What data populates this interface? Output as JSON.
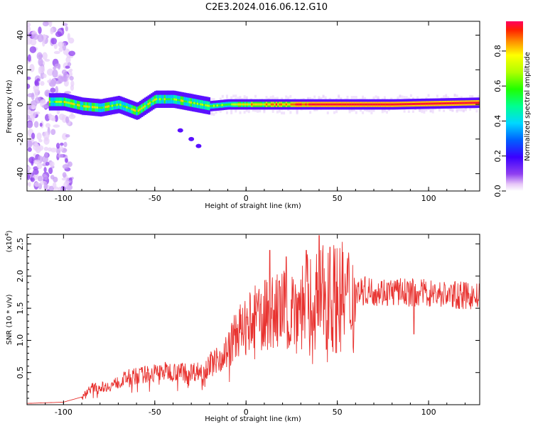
{
  "title": "C2E3.2024.016.06.12.G10",
  "chart_data": [
    {
      "type": "heatmap",
      "xlabel": "Height of straight line (km)",
      "ylabel": "Frequency (Hz)",
      "xlim": [
        -120,
        128
      ],
      "ylim": [
        -50,
        48
      ],
      "x_ticks": [
        -100,
        -50,
        0,
        50,
        100
      ],
      "x_tick_labels": [
        "-100",
        "-50",
        "0",
        "50",
        "100"
      ],
      "y_ticks": [
        -40,
        -20,
        0,
        20,
        40
      ],
      "y_tick_labels": [
        "-40",
        "-20",
        "0",
        "20",
        "40"
      ],
      "colorbar": {
        "label": "Normalized spectral amplitude",
        "range": [
          0,
          0.97
        ],
        "ticks": [
          0.0,
          0.2,
          0.4,
          0.6,
          0.8
        ],
        "tick_labels": [
          "0.0",
          "0.2",
          "0.4",
          "0.6",
          "0.8"
        ]
      },
      "ridge": [
        {
          "x": -100,
          "f": 1.5
        },
        {
          "x": -90,
          "f": -1
        },
        {
          "x": -80,
          "f": -2
        },
        {
          "x": -70,
          "f": 0
        },
        {
          "x": -60,
          "f": -4
        },
        {
          "x": -50,
          "f": 3
        },
        {
          "x": -40,
          "f": 3
        },
        {
          "x": -30,
          "f": 1
        },
        {
          "x": -20,
          "f": -1
        },
        {
          "x": -10,
          "f": 0
        },
        {
          "x": 0,
          "f": 0
        },
        {
          "x": 20,
          "f": 0
        },
        {
          "x": 50,
          "f": 0
        },
        {
          "x": 80,
          "f": 0
        },
        {
          "x": 128,
          "f": 1
        }
      ],
      "branch": [
        {
          "x": -36,
          "f": -15
        },
        {
          "x": -30,
          "f": -20
        },
        {
          "x": -26,
          "f": -24
        }
      ]
    },
    {
      "type": "line",
      "xlabel": "Height of straight line (km)",
      "ylabel": "SNR (10 * v/v)",
      "y_multiplier_label": "(x10",
      "y_multiplier_exp": "4",
      "y_multiplier_close": ")",
      "xlim": [
        -120,
        128
      ],
      "ylim": [
        0,
        2.65
      ],
      "x_ticks": [
        -100,
        -50,
        0,
        50,
        100
      ],
      "x_tick_labels": [
        "-100",
        "-50",
        "0",
        "50",
        "100"
      ],
      "y_ticks": [
        0.5,
        1.0,
        1.5,
        2.0,
        2.5
      ],
      "y_tick_labels": [
        "0.5",
        "1.0",
        "1.5",
        "2.0",
        "2.5"
      ],
      "color": "#e8322f",
      "envelope": [
        {
          "x": -120,
          "y": 0.02
        },
        {
          "x": -100,
          "y": 0.04
        },
        {
          "x": -90,
          "y": 0.12
        },
        {
          "x": -85,
          "y": 0.28
        },
        {
          "x": -75,
          "y": 0.3
        },
        {
          "x": -65,
          "y": 0.45
        },
        {
          "x": -55,
          "y": 0.5
        },
        {
          "x": -45,
          "y": 0.55
        },
        {
          "x": -35,
          "y": 0.55
        },
        {
          "x": -25,
          "y": 0.55
        },
        {
          "x": -18,
          "y": 0.7
        },
        {
          "x": -10,
          "y": 0.9
        },
        {
          "x": -5,
          "y": 1.2
        },
        {
          "x": 0,
          "y": 1.3
        },
        {
          "x": 5,
          "y": 1.45
        },
        {
          "x": 15,
          "y": 1.55
        },
        {
          "x": 25,
          "y": 1.65
        },
        {
          "x": 35,
          "y": 1.75
        },
        {
          "x": 45,
          "y": 1.85
        },
        {
          "x": 60,
          "y": 1.82
        },
        {
          "x": 80,
          "y": 1.8
        },
        {
          "x": 100,
          "y": 1.78
        },
        {
          "x": 128,
          "y": 1.72
        }
      ],
      "peaks": [
        {
          "x": 13,
          "y": 2.4
        },
        {
          "x": 22,
          "y": 2.3
        },
        {
          "x": 33,
          "y": 2.4
        },
        {
          "x": 40,
          "y": 2.63
        },
        {
          "x": 46,
          "y": 2.45
        },
        {
          "x": 92,
          "y": 1.1
        }
      ]
    }
  ]
}
